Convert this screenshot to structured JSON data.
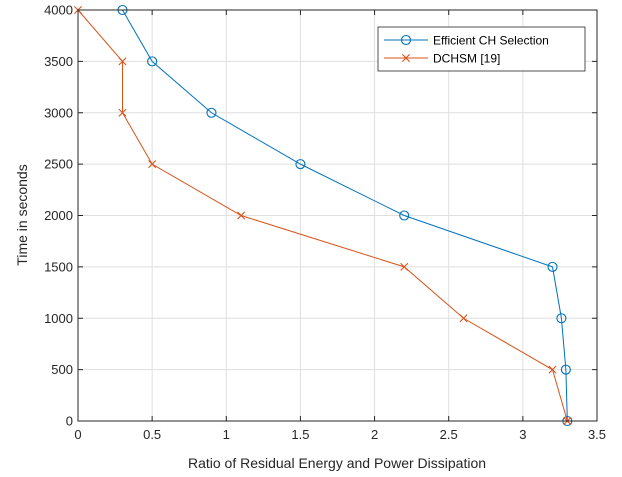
{
  "chart_data": {
    "type": "line",
    "title": "",
    "xlabel": "Ratio of Residual Energy and Power Dissipation",
    "ylabel": "Time in seconds",
    "xlim": [
      0,
      3.5
    ],
    "ylim": [
      0,
      4000
    ],
    "x_ticks": [
      "0",
      "0.5",
      "1",
      "1.5",
      "2",
      "2.5",
      "3",
      "3.5"
    ],
    "y_ticks": [
      "0",
      "500",
      "1000",
      "1500",
      "2000",
      "2500",
      "3000",
      "3500",
      "4000"
    ],
    "grid": true,
    "legend_position": "top-right",
    "series": [
      {
        "name": "Efficient CH Selection",
        "color": "#0072BD",
        "marker": "circle",
        "x": [
          0.3,
          0.5,
          0.9,
          1.5,
          2.2,
          3.2,
          3.26,
          3.29,
          3.3
        ],
        "y": [
          4000,
          3500,
          3000,
          2500,
          2000,
          1500,
          1000,
          500,
          0
        ]
      },
      {
        "name": "DCHSM [19]",
        "color": "#D95319",
        "marker": "x",
        "x": [
          0,
          0.3,
          0.3,
          0.5,
          1.1,
          2.2,
          2.6,
          3.2,
          3.3
        ],
        "y": [
          4000,
          3500,
          3000,
          2500,
          2000,
          1500,
          1000,
          500,
          0
        ]
      }
    ]
  }
}
